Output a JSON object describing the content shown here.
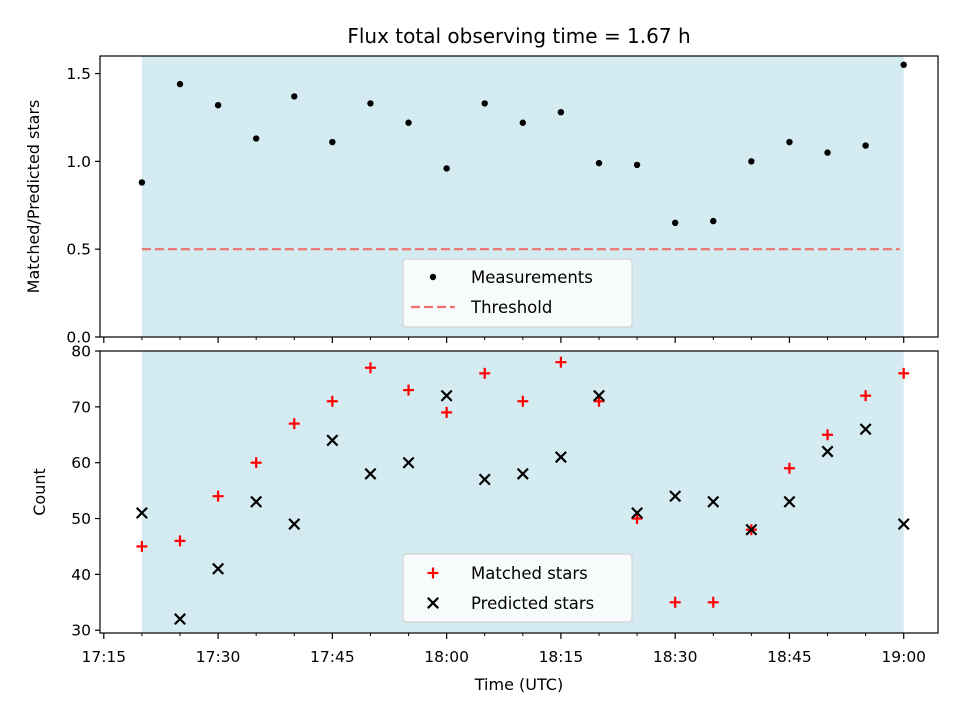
{
  "chart_data": [
    {
      "type": "scatter",
      "title": "Flux total observing time = 1.67 h",
      "xlabel": "",
      "ylabel": "Matched/Predicted stars",
      "ylim": [
        0.0,
        1.6
      ],
      "yticks": [
        0.0,
        0.5,
        1.0,
        1.5
      ],
      "ytick_labels": [
        "0.0",
        "0.5",
        "1.0",
        "1.5"
      ],
      "threshold": 0.5,
      "observing_window": [
        "17:20",
        "19:00"
      ],
      "background_color": "#d4ebf1",
      "x": [
        "17:20",
        "17:25",
        "17:30",
        "17:35",
        "17:40",
        "17:45",
        "17:50",
        "17:55",
        "18:00",
        "18:05",
        "18:10",
        "18:15",
        "18:20",
        "18:25",
        "18:30",
        "18:35",
        "18:40",
        "18:45",
        "18:50",
        "18:55",
        "19:00"
      ],
      "series": [
        {
          "name": "Measurements",
          "marker": "dot",
          "color": "#000000",
          "values": [
            0.88,
            1.44,
            1.32,
            1.13,
            1.37,
            1.11,
            1.33,
            1.22,
            0.96,
            1.33,
            1.22,
            1.28,
            0.99,
            0.98,
            0.65,
            0.66,
            1.0,
            1.11,
            1.05,
            1.09,
            1.55
          ]
        },
        {
          "name": "Threshold",
          "marker": "dashed-line",
          "color": "#f07070"
        }
      ],
      "legend_position": "bottom-center"
    },
    {
      "type": "scatter",
      "xlabel": "Time (UTC)",
      "ylabel": "Count",
      "ylim": [
        29.5,
        80
      ],
      "yticks": [
        30,
        40,
        50,
        60,
        70,
        80
      ],
      "xlim": [
        "17:14:30",
        "19:04:30"
      ],
      "xticks": [
        "17:15",
        "17:30",
        "17:45",
        "18:00",
        "18:15",
        "18:30",
        "18:45",
        "19:00"
      ],
      "minor_xticks_minutes": 5,
      "background_color": "#d4ebf1",
      "x": [
        "17:20",
        "17:25",
        "17:30",
        "17:35",
        "17:40",
        "17:45",
        "17:50",
        "17:55",
        "18:00",
        "18:05",
        "18:10",
        "18:15",
        "18:20",
        "18:25",
        "18:30",
        "18:35",
        "18:40",
        "18:45",
        "18:50",
        "18:55",
        "19:00"
      ],
      "series": [
        {
          "name": "Matched stars",
          "marker": "plus",
          "color": "#ff0000",
          "values": [
            45,
            46,
            54,
            60,
            67,
            71,
            77,
            73,
            69,
            76,
            71,
            78,
            71,
            50,
            35,
            35,
            48,
            59,
            65,
            72,
            76
          ]
        },
        {
          "name": "Predicted stars",
          "marker": "x",
          "color": "#000000",
          "values": [
            51,
            32,
            41,
            53,
            49,
            64,
            58,
            60,
            72,
            57,
            58,
            61,
            72,
            51,
            54,
            53,
            48,
            53,
            62,
            66,
            49
          ]
        }
      ],
      "legend_position": "bottom-center"
    }
  ]
}
